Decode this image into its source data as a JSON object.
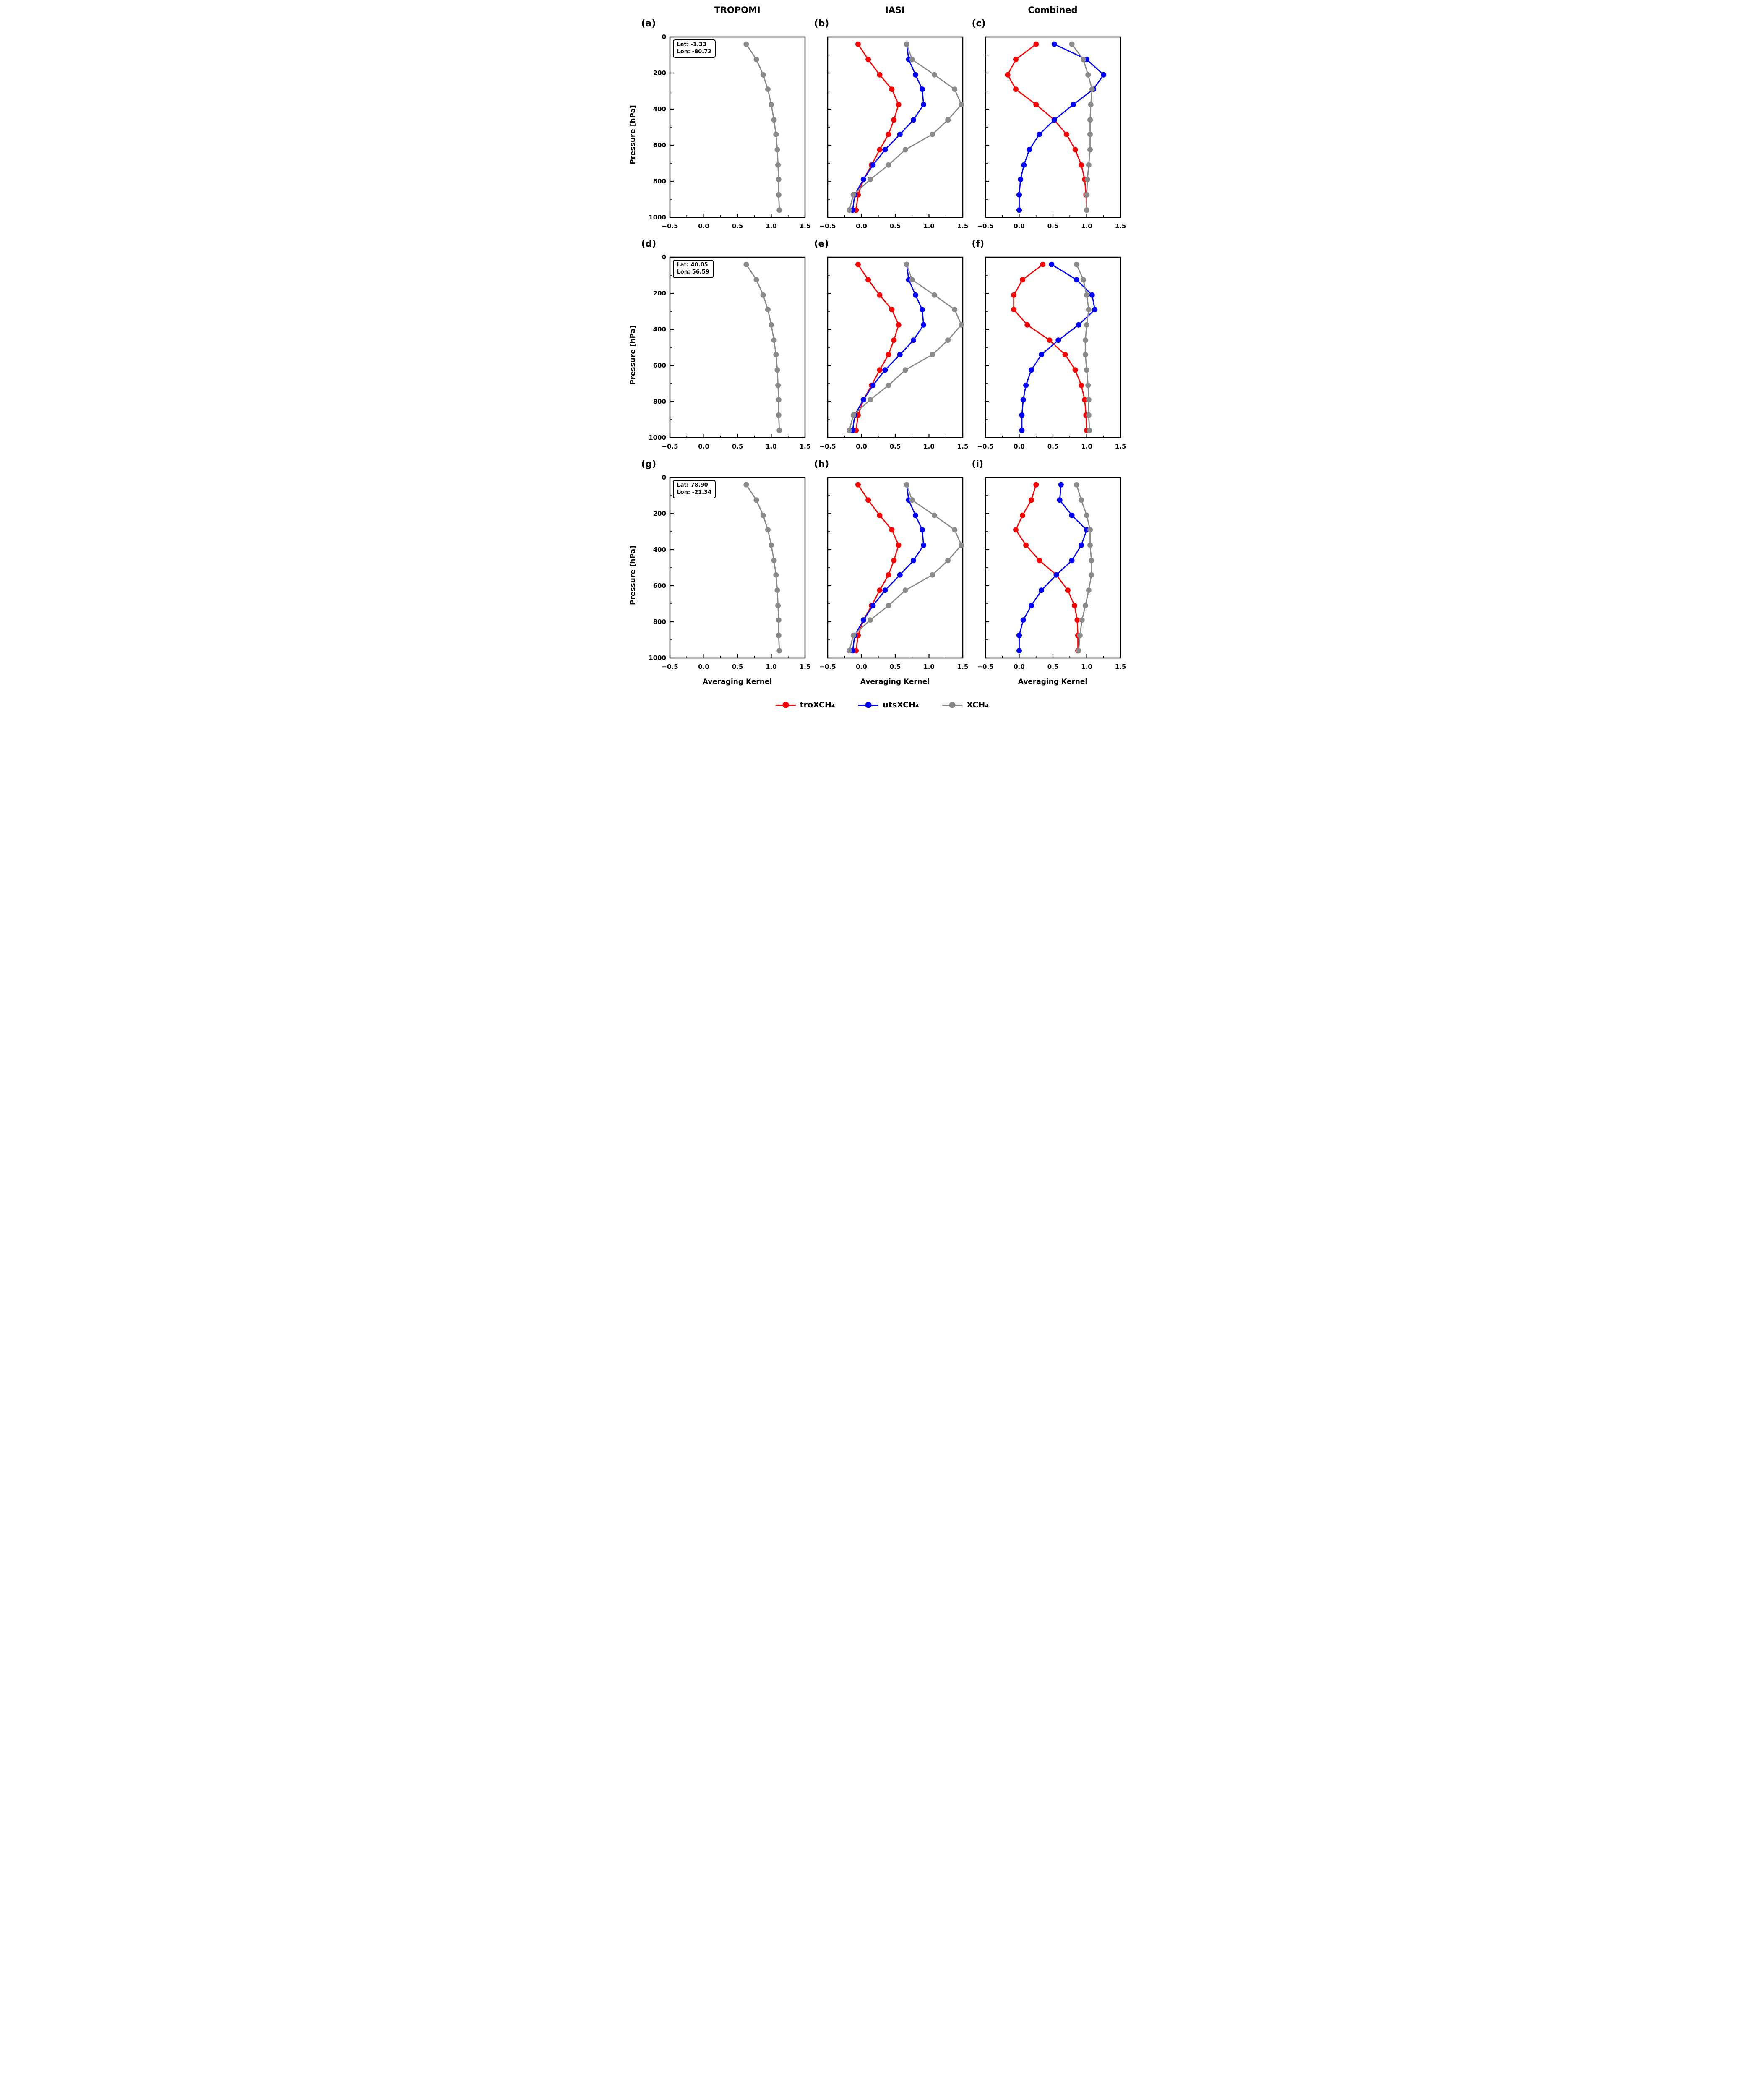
{
  "columns": [
    {
      "title": "TROPOMI"
    },
    {
      "title": "IASI"
    },
    {
      "title": "Combined"
    }
  ],
  "axis": {
    "xlabel": "Averaging Kernel",
    "ylabel": "Pressure [hPa]",
    "xlim": [
      -0.5,
      1.5
    ],
    "ylim": [
      0,
      1000
    ],
    "xticks": [
      -0.5,
      0.0,
      0.5,
      1.0,
      1.5
    ],
    "xtick_labels": [
      "−0.5",
      "0.0",
      "0.5",
      "1.0",
      "1.5"
    ],
    "xminor": [
      -0.25,
      0.25,
      0.75,
      1.25
    ],
    "yticks": [
      0,
      200,
      400,
      600,
      800,
      1000
    ],
    "ytick_labels": [
      "0",
      "200",
      "400",
      "600",
      "800",
      "1000"
    ],
    "yminor": [
      100,
      300,
      500,
      700,
      900
    ]
  },
  "colors": {
    "red": "#ff0000",
    "blue": "#0000ff",
    "gray": "#8a8a8a"
  },
  "legend": [
    {
      "label": "troXCH₄",
      "color": "#ff0000"
    },
    {
      "label": "utsXCH₄",
      "color": "#0000ff"
    },
    {
      "label": "XCH₄",
      "color": "#8a8a8a"
    }
  ],
  "chart_data": {
    "type": "line",
    "orientation": "profile-vs-pressure",
    "pressure_levels": [
      40,
      125,
      210,
      290,
      375,
      460,
      540,
      625,
      710,
      790,
      875,
      960
    ],
    "panels": [
      {
        "id": "(a)",
        "row": 0,
        "col": 0,
        "annotation": {
          "lat": "Lat: -1.33",
          "lon": "Lon: -80.72"
        },
        "series": [
          {
            "name": "XCH₄",
            "color_key": "gray",
            "values": [
              0.63,
              0.78,
              0.88,
              0.95,
              1.0,
              1.04,
              1.07,
              1.09,
              1.1,
              1.11,
              1.11,
              1.12
            ]
          }
        ]
      },
      {
        "id": "(b)",
        "row": 0,
        "col": 1,
        "annotation": null,
        "series": [
          {
            "name": "troXCH₄",
            "color_key": "red",
            "values": [
              -0.05,
              0.1,
              0.27,
              0.45,
              0.55,
              0.48,
              0.4,
              0.27,
              0.15,
              0.03,
              -0.05,
              -0.08
            ]
          },
          {
            "name": "utsXCH₄",
            "color_key": "blue",
            "values": [
              0.67,
              0.7,
              0.8,
              0.9,
              0.92,
              0.77,
              0.57,
              0.35,
              0.17,
              0.03,
              -0.1,
              -0.13
            ]
          },
          {
            "name": "XCH₄",
            "color_key": "gray",
            "values": [
              0.67,
              0.75,
              1.08,
              1.38,
              1.48,
              1.28,
              1.05,
              0.65,
              0.4,
              0.13,
              -0.12,
              -0.18
            ]
          }
        ]
      },
      {
        "id": "(c)",
        "row": 0,
        "col": 2,
        "annotation": null,
        "series": [
          {
            "name": "troXCH₄",
            "color_key": "red",
            "values": [
              0.25,
              -0.05,
              -0.17,
              -0.05,
              0.25,
              0.52,
              0.7,
              0.83,
              0.92,
              0.97,
              0.99,
              1.0
            ]
          },
          {
            "name": "utsXCH₄",
            "color_key": "blue",
            "values": [
              0.52,
              1.0,
              1.25,
              1.1,
              0.8,
              0.52,
              0.3,
              0.15,
              0.07,
              0.02,
              0.0,
              0.0
            ]
          },
          {
            "name": "XCH₄",
            "color_key": "gray",
            "values": [
              0.78,
              0.95,
              1.02,
              1.08,
              1.06,
              1.05,
              1.05,
              1.05,
              1.03,
              1.01,
              1.0,
              1.0
            ]
          }
        ]
      },
      {
        "id": "(d)",
        "row": 1,
        "col": 0,
        "annotation": {
          "lat": "Lat: 40.05",
          "lon": "Lon: 56.59"
        },
        "series": [
          {
            "name": "XCH₄",
            "color_key": "gray",
            "values": [
              0.63,
              0.78,
              0.88,
              0.95,
              1.0,
              1.04,
              1.07,
              1.09,
              1.1,
              1.11,
              1.11,
              1.12
            ]
          }
        ]
      },
      {
        "id": "(e)",
        "row": 1,
        "col": 1,
        "annotation": null,
        "series": [
          {
            "name": "troXCH₄",
            "color_key": "red",
            "values": [
              -0.05,
              0.1,
              0.27,
              0.45,
              0.55,
              0.48,
              0.4,
              0.27,
              0.15,
              0.03,
              -0.05,
              -0.08
            ]
          },
          {
            "name": "utsXCH₄",
            "color_key": "blue",
            "values": [
              0.67,
              0.7,
              0.8,
              0.9,
              0.92,
              0.77,
              0.57,
              0.35,
              0.17,
              0.03,
              -0.1,
              -0.13
            ]
          },
          {
            "name": "XCH₄",
            "color_key": "gray",
            "values": [
              0.67,
              0.75,
              1.08,
              1.38,
              1.48,
              1.28,
              1.05,
              0.65,
              0.4,
              0.13,
              -0.12,
              -0.18
            ]
          }
        ]
      },
      {
        "id": "(f)",
        "row": 1,
        "col": 2,
        "annotation": null,
        "series": [
          {
            "name": "troXCH₄",
            "color_key": "red",
            "values": [
              0.35,
              0.05,
              -0.08,
              -0.08,
              0.12,
              0.45,
              0.68,
              0.83,
              0.92,
              0.97,
              0.99,
              1.0
            ]
          },
          {
            "name": "utsXCH₄",
            "color_key": "blue",
            "values": [
              0.48,
              0.85,
              1.08,
              1.12,
              0.88,
              0.58,
              0.33,
              0.18,
              0.1,
              0.06,
              0.04,
              0.04
            ]
          },
          {
            "name": "XCH₄",
            "color_key": "gray",
            "values": [
              0.85,
              0.95,
              1.0,
              1.03,
              1.0,
              0.98,
              0.98,
              1.0,
              1.02,
              1.03,
              1.03,
              1.04
            ]
          }
        ]
      },
      {
        "id": "(g)",
        "row": 2,
        "col": 0,
        "annotation": {
          "lat": "Lat: 78.90",
          "lon": "Lon: -21.34"
        },
        "series": [
          {
            "name": "XCH₄",
            "color_key": "gray",
            "values": [
              0.63,
              0.78,
              0.88,
              0.95,
              1.0,
              1.04,
              1.07,
              1.09,
              1.1,
              1.11,
              1.11,
              1.12
            ]
          }
        ]
      },
      {
        "id": "(h)",
        "row": 2,
        "col": 1,
        "annotation": null,
        "series": [
          {
            "name": "troXCH₄",
            "color_key": "red",
            "values": [
              -0.05,
              0.1,
              0.27,
              0.45,
              0.55,
              0.48,
              0.4,
              0.27,
              0.15,
              0.03,
              -0.05,
              -0.08
            ]
          },
          {
            "name": "utsXCH₄",
            "color_key": "blue",
            "values": [
              0.67,
              0.7,
              0.8,
              0.9,
              0.92,
              0.77,
              0.57,
              0.35,
              0.17,
              0.03,
              -0.1,
              -0.13
            ]
          },
          {
            "name": "XCH₄",
            "color_key": "gray",
            "values": [
              0.67,
              0.75,
              1.08,
              1.38,
              1.48,
              1.28,
              1.05,
              0.65,
              0.4,
              0.13,
              -0.12,
              -0.18
            ]
          }
        ]
      },
      {
        "id": "(i)",
        "row": 2,
        "col": 2,
        "annotation": null,
        "series": [
          {
            "name": "troXCH₄",
            "color_key": "red",
            "values": [
              0.25,
              0.18,
              0.05,
              -0.05,
              0.1,
              0.3,
              0.55,
              0.72,
              0.82,
              0.86,
              0.87,
              0.87
            ]
          },
          {
            "name": "utsXCH₄",
            "color_key": "blue",
            "values": [
              0.62,
              0.6,
              0.78,
              1.0,
              0.92,
              0.78,
              0.55,
              0.33,
              0.18,
              0.06,
              0.0,
              0.0
            ]
          },
          {
            "name": "XCH₄",
            "color_key": "gray",
            "values": [
              0.85,
              0.92,
              1.0,
              1.05,
              1.05,
              1.07,
              1.07,
              1.03,
              0.98,
              0.93,
              0.9,
              0.88
            ]
          }
        ]
      }
    ]
  }
}
